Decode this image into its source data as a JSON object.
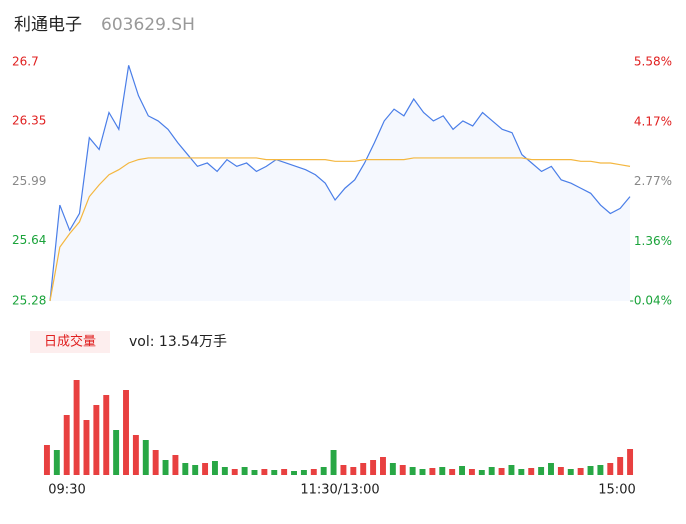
{
  "chart_data": {
    "type": "intraday",
    "title": "利通电子",
    "code": "603629.SH",
    "ylim": [
      25.28,
      26.7
    ],
    "yticks": [
      25.28,
      25.64,
      25.99,
      26.35,
      26.7
    ],
    "y2lim": [
      -0.04,
      5.58
    ],
    "y2ticks": [
      {
        "value": -0.04,
        "label": "-0.04%"
      },
      {
        "value": 1.36,
        "label": "1.36%"
      },
      {
        "value": 2.77,
        "label": "2.77%"
      },
      {
        "value": 4.17,
        "label": "4.17%"
      },
      {
        "value": 5.58,
        "label": "5.58%"
      }
    ],
    "tick_colors": [
      "#1aa33a",
      "#1aa33a",
      "#888888",
      "#e02020",
      "#e02020"
    ],
    "series": [
      {
        "name": "price",
        "color": "#4a7ee8",
        "values": [
          25.28,
          25.85,
          25.7,
          25.8,
          26.25,
          26.18,
          26.4,
          26.3,
          26.68,
          26.5,
          26.38,
          26.35,
          26.3,
          26.22,
          26.15,
          26.08,
          26.1,
          26.05,
          26.12,
          26.08,
          26.1,
          26.05,
          26.08,
          26.12,
          26.1,
          26.08,
          26.06,
          26.03,
          25.98,
          25.88,
          25.95,
          26.0,
          26.1,
          26.22,
          26.35,
          26.42,
          26.38,
          26.48,
          26.4,
          26.35,
          26.38,
          26.3,
          26.35,
          26.32,
          26.4,
          26.35,
          26.3,
          26.28,
          26.15,
          26.1,
          26.05,
          26.08,
          26.0,
          25.98,
          25.95,
          25.92,
          25.85,
          25.8,
          25.83,
          25.9
        ]
      },
      {
        "name": "avg",
        "color": "#f4b740",
        "values": [
          25.28,
          25.6,
          25.68,
          25.75,
          25.9,
          25.97,
          26.03,
          26.06,
          26.1,
          26.12,
          26.13,
          26.13,
          26.13,
          26.13,
          26.13,
          26.13,
          26.13,
          26.13,
          26.13,
          26.13,
          26.13,
          26.13,
          26.12,
          26.12,
          26.12,
          26.12,
          26.12,
          26.12,
          26.12,
          26.11,
          26.11,
          26.11,
          26.12,
          26.12,
          26.12,
          26.12,
          26.12,
          26.13,
          26.13,
          26.13,
          26.13,
          26.13,
          26.13,
          26.13,
          26.13,
          26.13,
          26.13,
          26.13,
          26.13,
          26.12,
          26.12,
          26.12,
          26.12,
          26.12,
          26.11,
          26.11,
          26.1,
          26.1,
          26.09,
          26.08
        ]
      }
    ],
    "volume_legend": "日成交量",
    "volume_text": "vol: 13.54万手",
    "volume": [
      30,
      25,
      60,
      95,
      55,
      70,
      80,
      45,
      85,
      40,
      35,
      25,
      15,
      20,
      12,
      10,
      12,
      14,
      8,
      6,
      8,
      5,
      6,
      5,
      6,
      4,
      5,
      6,
      8,
      25,
      10,
      8,
      12,
      15,
      18,
      12,
      10,
      8,
      6,
      7,
      8,
      6,
      9,
      6,
      5,
      8,
      7,
      10,
      6,
      7,
      8,
      12,
      8,
      6,
      7,
      9,
      10,
      12,
      18,
      26
    ],
    "volume_up": [
      1,
      0,
      1,
      1,
      1,
      1,
      1,
      0,
      1,
      1,
      0,
      1,
      0,
      1,
      0,
      0,
      1,
      0,
      0,
      1,
      0,
      0,
      1,
      0,
      1,
      0,
      0,
      1,
      0,
      0,
      1,
      1,
      1,
      1,
      1,
      0,
      1,
      0,
      0,
      1,
      0,
      1,
      0,
      1,
      0,
      0,
      1,
      0,
      0,
      1,
      0,
      0,
      1,
      0,
      1,
      0,
      0,
      1,
      1,
      1
    ],
    "up_color": "#e84040",
    "down_color": "#28a745",
    "time_labels": [
      "09:30",
      "11:30/13:00",
      "15:00"
    ]
  }
}
